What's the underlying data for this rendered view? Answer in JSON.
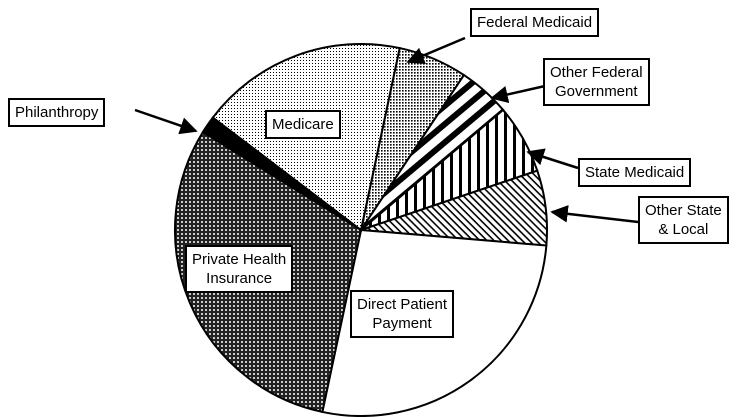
{
  "chart_data": {
    "type": "pie",
    "categories": [
      "Federal Medicaid",
      "Other Federal\nGovernment",
      "State Medicaid",
      "Other State\n& Local",
      "Direct Patient\nPayment",
      "Private Health\nInsurance",
      "Philanthropy",
      "Medicare"
    ],
    "values": [
      6,
      4.5,
      6,
      6.5,
      27,
      30.5,
      1.5,
      18
    ]
  }
}
